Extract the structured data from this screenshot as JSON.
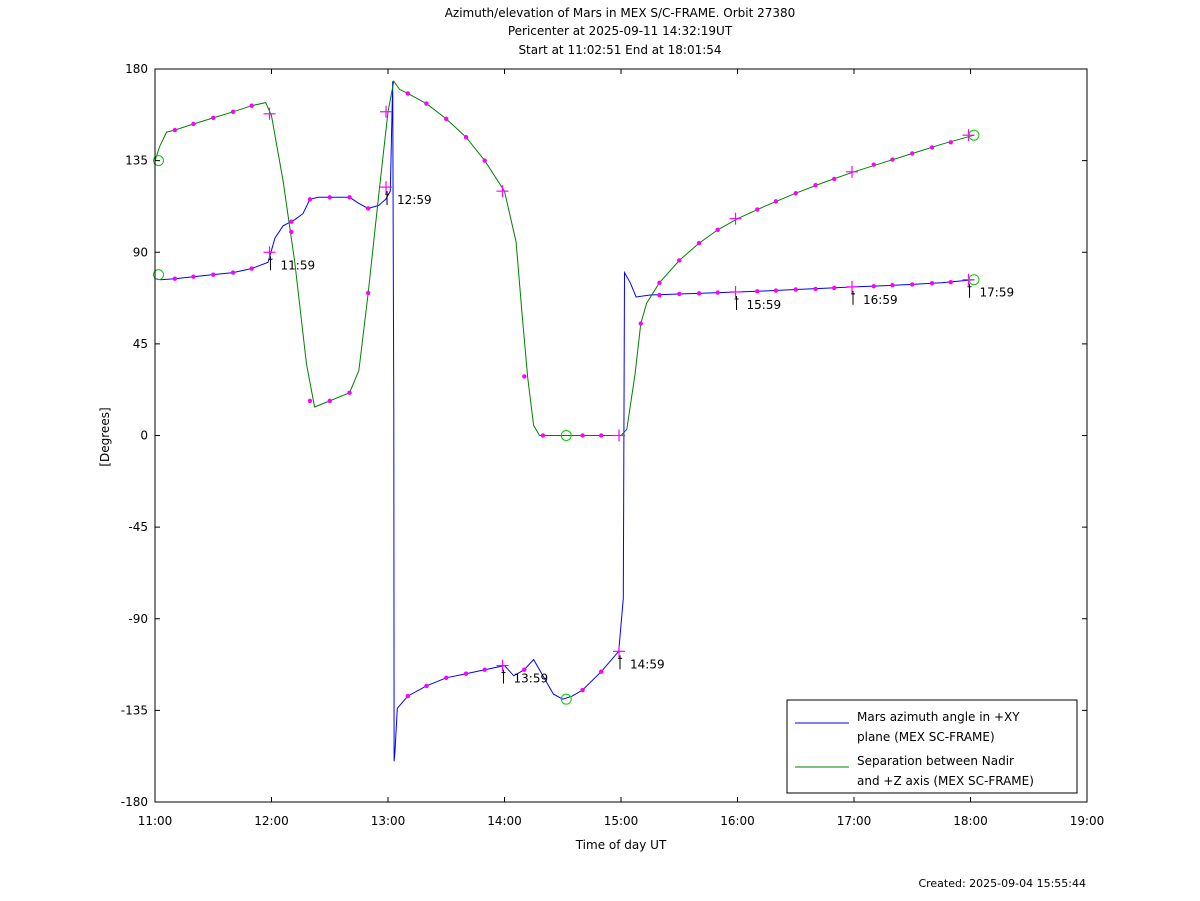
{
  "header": {
    "title": "Azimuth/elevation of Mars in MEX S/C-FRAME.  Orbit 27380",
    "pericenter": "Pericenter at 2025-09-11 14:32:19UT",
    "start_end": "Start at 11:02:51 End at 18:01:54"
  },
  "footer": {
    "created": "Created: 2025-09-04 15:55:44"
  },
  "colors": {
    "azimuth": "#0000ff",
    "separation": "#008000",
    "markers": "#ff00ff",
    "start_end_marker": "#00cc00"
  },
  "chart_data": {
    "type": "line",
    "title": "Azimuth/elevation of Mars in MEX S/C-FRAME.  Orbit 27380",
    "xlabel": "Time of day UT",
    "ylabel": "[Degrees]",
    "xlim": [
      11,
      19
    ],
    "ylim": [
      -180,
      180
    ],
    "x_ticks": [
      "11:00",
      "12:00",
      "13:00",
      "14:00",
      "15:00",
      "16:00",
      "17:00",
      "18:00",
      "19:00"
    ],
    "y_ticks": [
      180,
      135,
      90,
      45,
      0,
      -45,
      -90,
      -135,
      -180
    ],
    "grid": false,
    "legend_position": "bottom-right",
    "series": [
      {
        "name": "Mars azimuth angle in +XY plane (MEX SC-FRAME)",
        "legend_lines": [
          "Mars azimuth angle in +XY",
          "plane (MEX SC-FRAME)"
        ],
        "color": "#0000ff",
        "points": [
          [
            11.0,
            77
          ],
          [
            11.05,
            76.5
          ],
          [
            11.17,
            77
          ],
          [
            11.33,
            78
          ],
          [
            11.5,
            79
          ],
          [
            11.67,
            80
          ],
          [
            11.83,
            82
          ],
          [
            11.97,
            85
          ],
          [
            12.03,
            97
          ],
          [
            12.1,
            103
          ],
          [
            12.2,
            106
          ],
          [
            12.27,
            109
          ],
          [
            12.33,
            116
          ],
          [
            12.4,
            117
          ],
          [
            12.5,
            117
          ],
          [
            12.67,
            117
          ],
          [
            12.75,
            114
          ],
          [
            12.83,
            111.5
          ],
          [
            12.92,
            113
          ],
          [
            12.98,
            116
          ],
          [
            13.02,
            120
          ],
          [
            13.04,
            174
          ],
          [
            13.05,
            8
          ],
          [
            13.052,
            -160
          ],
          [
            13.06,
            -155
          ],
          [
            13.08,
            -134
          ],
          [
            13.17,
            -128
          ],
          [
            13.33,
            -123
          ],
          [
            13.5,
            -119
          ],
          [
            13.67,
            -117
          ],
          [
            13.83,
            -115
          ],
          [
            14.0,
            -113
          ],
          [
            14.08,
            -118
          ],
          [
            14.17,
            -115
          ],
          [
            14.25,
            -110
          ],
          [
            14.33,
            -118
          ],
          [
            14.42,
            -127
          ],
          [
            14.5,
            -129.5
          ],
          [
            14.58,
            -128
          ],
          [
            14.67,
            -125
          ],
          [
            14.83,
            -116
          ],
          [
            14.98,
            -106
          ],
          [
            15.02,
            -80
          ],
          [
            15.03,
            80
          ],
          [
            15.08,
            75
          ],
          [
            15.13,
            68
          ],
          [
            15.25,
            69
          ],
          [
            15.5,
            69.5
          ],
          [
            15.75,
            70
          ],
          [
            16.0,
            70.5
          ],
          [
            16.25,
            71
          ],
          [
            16.5,
            71.7
          ],
          [
            16.75,
            72.3
          ],
          [
            17.0,
            73
          ],
          [
            17.25,
            73.5
          ],
          [
            17.5,
            74.2
          ],
          [
            17.75,
            75
          ],
          [
            18.03,
            76.5
          ]
        ]
      },
      {
        "name": "Separation between Nadir and +Z axis (MEX SC-FRAME)",
        "legend_lines": [
          "Separation between Nadir",
          "and +Z axis (MEX SC-FRAME)"
        ],
        "color": "#008000",
        "points": [
          [
            11.0,
            135
          ],
          [
            11.04,
            142
          ],
          [
            11.1,
            149
          ],
          [
            11.17,
            150
          ],
          [
            11.33,
            153
          ],
          [
            11.5,
            156
          ],
          [
            11.67,
            159
          ],
          [
            11.83,
            162
          ],
          [
            11.95,
            163.5
          ],
          [
            12.0,
            157
          ],
          [
            12.1,
            125
          ],
          [
            12.2,
            85
          ],
          [
            12.3,
            35
          ],
          [
            12.37,
            14
          ],
          [
            12.5,
            17
          ],
          [
            12.67,
            21
          ],
          [
            12.75,
            32
          ],
          [
            12.83,
            70
          ],
          [
            12.92,
            118
          ],
          [
            13.0,
            159
          ],
          [
            13.05,
            174
          ],
          [
            13.1,
            170
          ],
          [
            13.17,
            168
          ],
          [
            13.33,
            163
          ],
          [
            13.5,
            155.5
          ],
          [
            13.67,
            146.5
          ],
          [
            13.83,
            135
          ],
          [
            14.0,
            120
          ],
          [
            14.1,
            95
          ],
          [
            14.15,
            60
          ],
          [
            14.2,
            28
          ],
          [
            14.25,
            5
          ],
          [
            14.3,
            0
          ],
          [
            14.5,
            0
          ],
          [
            14.75,
            0
          ],
          [
            15.0,
            0
          ],
          [
            15.05,
            3
          ],
          [
            15.12,
            30
          ],
          [
            15.17,
            55
          ],
          [
            15.22,
            65
          ],
          [
            15.33,
            75
          ],
          [
            15.5,
            86
          ],
          [
            15.67,
            94.5
          ],
          [
            15.83,
            101
          ],
          [
            16.0,
            106.5
          ],
          [
            16.25,
            113
          ],
          [
            16.5,
            119
          ],
          [
            16.75,
            124.5
          ],
          [
            17.0,
            129.5
          ],
          [
            17.25,
            134
          ],
          [
            17.5,
            138.5
          ],
          [
            17.75,
            143
          ],
          [
            18.03,
            147.5
          ]
        ]
      }
    ],
    "hour_marks": [
      {
        "label": "11:59",
        "x": 11.983,
        "y": 90
      },
      {
        "label": "12:59",
        "x": 12.983,
        "y": 122
      },
      {
        "label": "13:59",
        "x": 13.983,
        "y": -113
      },
      {
        "label": "14:59",
        "x": 14.983,
        "y": -106
      },
      {
        "label": "15:59",
        "x": 15.983,
        "y": 70.5
      },
      {
        "label": "16:59",
        "x": 16.983,
        "y": 73
      },
      {
        "label": "17:59",
        "x": 17.983,
        "y": 76.5
      }
    ],
    "plus_marks": [
      [
        11.983,
        90
      ],
      [
        11.983,
        158
      ],
      [
        12.983,
        122
      ],
      [
        12.983,
        159
      ],
      [
        13.983,
        -113
      ],
      [
        13.983,
        120
      ],
      [
        14.983,
        -106
      ],
      [
        14.983,
        0
      ],
      [
        15.983,
        70.5
      ],
      [
        15.983,
        106.5
      ],
      [
        16.983,
        73
      ],
      [
        16.983,
        129.5
      ],
      [
        17.983,
        76.5
      ],
      [
        17.983,
        147.5
      ]
    ],
    "start_end_marks": [
      [
        11.03,
        135
      ],
      [
        11.03,
        79
      ],
      [
        14.53,
        0
      ],
      [
        14.53,
        -129.5
      ],
      [
        18.03,
        76.5
      ],
      [
        18.03,
        147.5
      ]
    ],
    "dot_markers_azimuth": [
      [
        11.17,
        77
      ],
      [
        11.33,
        78
      ],
      [
        11.5,
        79
      ],
      [
        11.67,
        80
      ],
      [
        11.83,
        82
      ],
      [
        12.17,
        105
      ],
      [
        12.33,
        116
      ],
      [
        12.5,
        117
      ],
      [
        12.67,
        117
      ],
      [
        12.83,
        111.5
      ],
      [
        13.17,
        -128
      ],
      [
        13.33,
        -123
      ],
      [
        13.5,
        -119
      ],
      [
        13.67,
        -117
      ],
      [
        13.83,
        -115
      ],
      [
        14.17,
        -115
      ],
      [
        14.67,
        -125
      ],
      [
        14.83,
        -116
      ],
      [
        15.33,
        69
      ],
      [
        15.5,
        69.5
      ],
      [
        15.67,
        69.8
      ],
      [
        15.83,
        70.2
      ],
      [
        16.17,
        70.8
      ],
      [
        16.33,
        71.2
      ],
      [
        16.5,
        71.7
      ],
      [
        16.67,
        72
      ],
      [
        16.83,
        72.5
      ],
      [
        17.17,
        73.3
      ],
      [
        17.33,
        73.8
      ],
      [
        17.5,
        74.2
      ],
      [
        17.67,
        74.8
      ],
      [
        17.83,
        75.3
      ]
    ],
    "dot_markers_separation": [
      [
        11.17,
        150
      ],
      [
        11.33,
        153
      ],
      [
        11.5,
        156
      ],
      [
        11.67,
        159
      ],
      [
        11.83,
        162
      ],
      [
        12.17,
        100
      ],
      [
        12.33,
        17
      ],
      [
        12.5,
        17
      ],
      [
        12.67,
        21
      ],
      [
        12.83,
        70
      ],
      [
        13.17,
        168
      ],
      [
        13.33,
        163
      ],
      [
        13.5,
        155.5
      ],
      [
        13.67,
        146.5
      ],
      [
        13.83,
        135
      ],
      [
        14.17,
        29
      ],
      [
        14.33,
        0
      ],
      [
        14.67,
        0
      ],
      [
        14.83,
        0
      ],
      [
        15.17,
        55
      ],
      [
        15.33,
        75
      ],
      [
        15.5,
        86
      ],
      [
        15.67,
        94.5
      ],
      [
        15.83,
        101
      ],
      [
        16.17,
        111
      ],
      [
        16.33,
        115
      ],
      [
        16.5,
        119
      ],
      [
        16.67,
        123
      ],
      [
        16.83,
        126
      ],
      [
        17.17,
        133
      ],
      [
        17.33,
        135.5
      ],
      [
        17.5,
        138.5
      ],
      [
        17.67,
        141.5
      ],
      [
        17.83,
        144
      ]
    ]
  }
}
